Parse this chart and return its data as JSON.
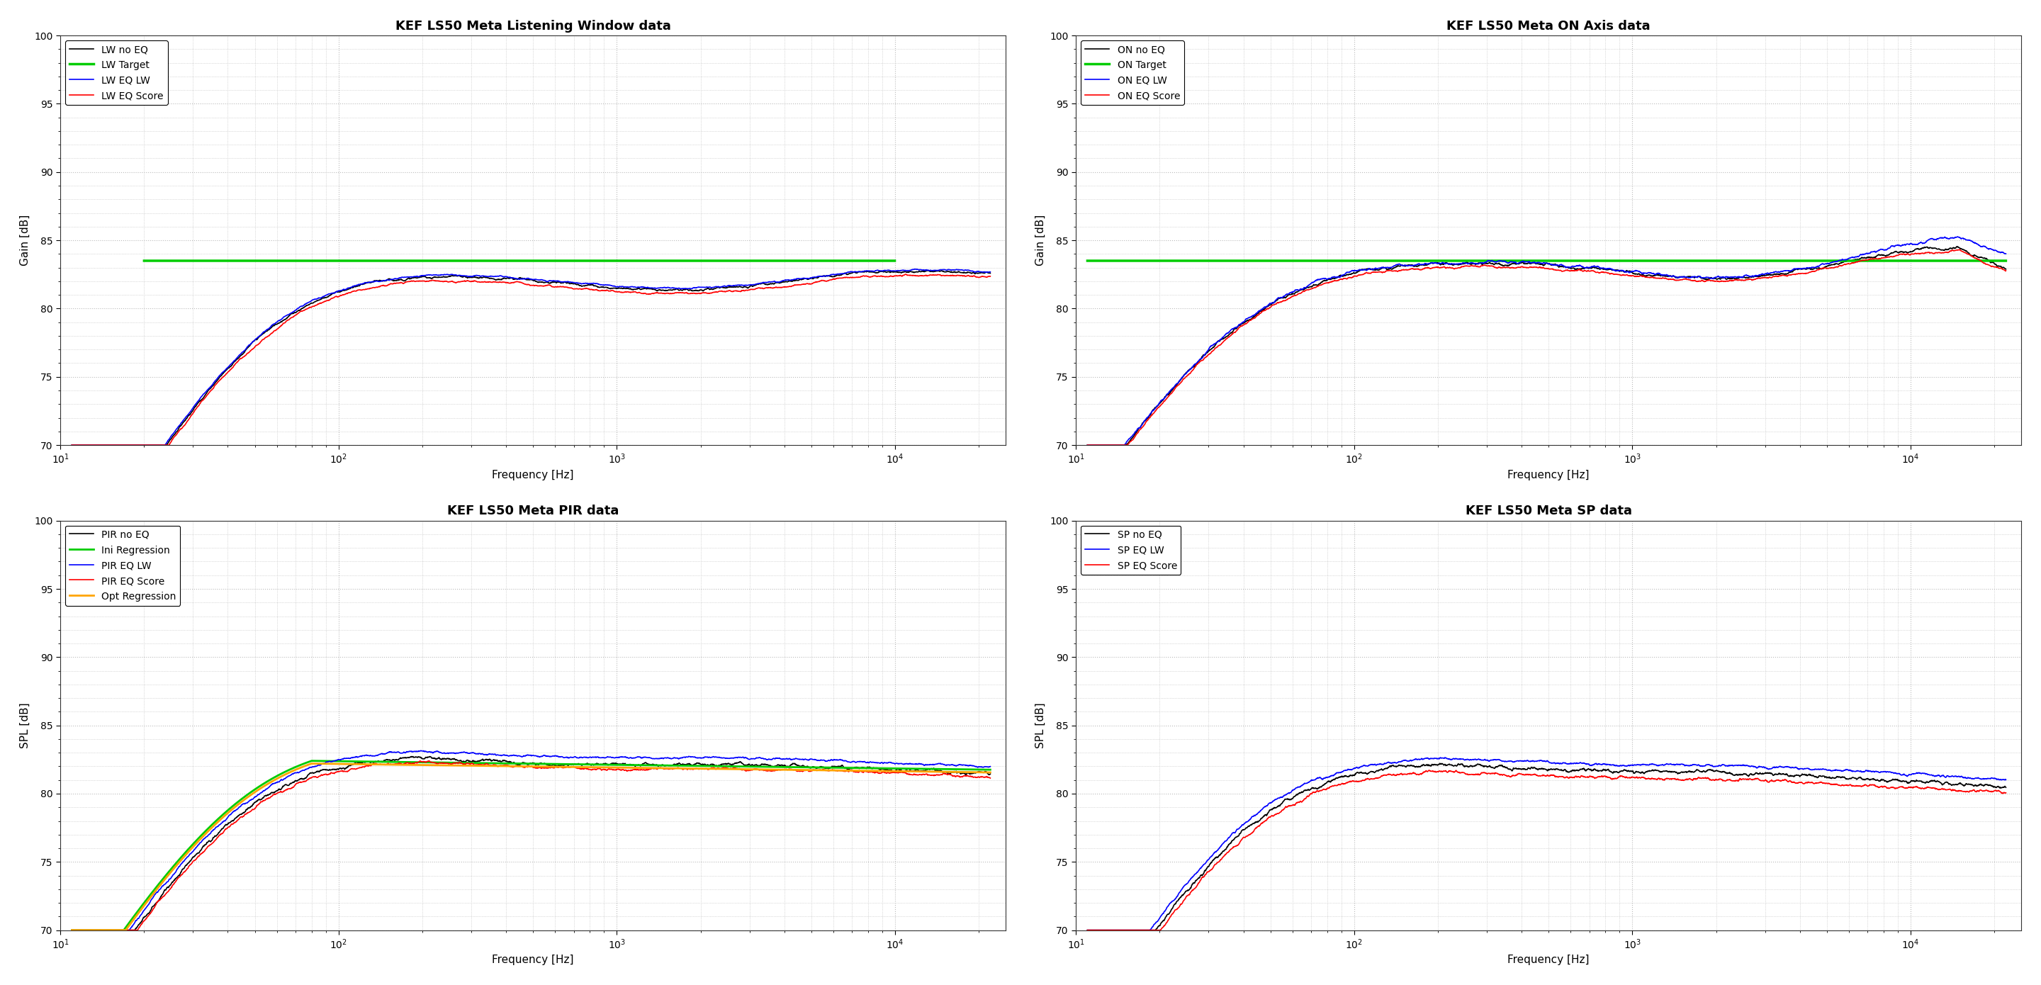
{
  "titles": [
    "KEF LS50 Meta Listening Window data",
    "KEF LS50 Meta ON Axis data",
    "KEF LS50 Meta PIR data",
    "KEF LS50 Meta SP data"
  ],
  "ylabels": [
    "Gain [dB]",
    "Gain [dB]",
    "SPL [dB]",
    "SPL [dB]"
  ],
  "xlabel": "Frequency [Hz]",
  "ylim": [
    70,
    100
  ],
  "xlim_low": 10,
  "xlim_high": 25000,
  "legend_labels": [
    [
      "LW no EQ",
      "LW Target",
      "LW EQ LW",
      "LW EQ Score"
    ],
    [
      "ON no EQ",
      "ON Target",
      "ON EQ LW",
      "ON EQ Score"
    ],
    [
      "PIR no EQ",
      "Ini Regression",
      "PIR EQ LW",
      "PIR EQ Score",
      "Opt Regression"
    ],
    [
      "SP no EQ",
      "SP EQ LW",
      "SP EQ Score"
    ]
  ],
  "line_colors": [
    [
      "#000000",
      "#00cc00",
      "#0000ff",
      "#ff0000"
    ],
    [
      "#000000",
      "#00cc00",
      "#0000ff",
      "#ff0000"
    ],
    [
      "#000000",
      "#00cc00",
      "#0000ff",
      "#ff0000",
      "#ffa500"
    ],
    [
      "#000000",
      "#0000ff",
      "#ff0000"
    ]
  ],
  "title_fontsize": 13,
  "label_fontsize": 11,
  "tick_fontsize": 10,
  "legend_fontsize": 10,
  "background_color": "#ffffff",
  "grid_color": "#bbbbbb",
  "linewidth": 1.2,
  "thick_linewidth": 2.0
}
